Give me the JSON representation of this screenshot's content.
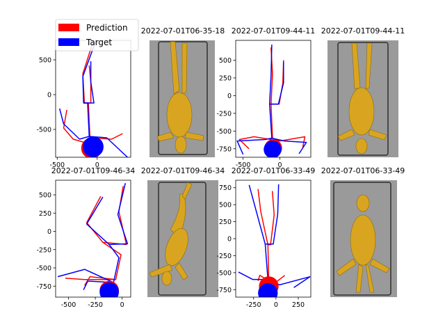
{
  "figure": {
    "colors": {
      "prediction": "#ff0000",
      "target": "#0000ff",
      "image_bg": "#9a9a9a",
      "animal": "#d9a520",
      "frame": "#303030"
    },
    "legend": {
      "prediction_label": "Prediction",
      "target_label": "Target"
    }
  },
  "chart_data": [
    {
      "type": "line",
      "title": "",
      "xlabel": "",
      "ylabel": "",
      "xlim": [
        -520,
        420
      ],
      "ylim": [
        -900,
        780
      ],
      "xticks": [
        -500,
        0
      ],
      "yticks": [
        500,
        0,
        -500
      ],
      "grid": false,
      "legend": "top-left",
      "series": [
        {
          "name": "Prediction",
          "segments": [
            [
              [
                -60,
                730
              ],
              [
                -180,
                300
              ],
              [
                -160,
                -120
              ],
              [
                -80,
                -120
              ],
              [
                -80,
                180
              ],
              [
                -100,
                420
              ]
            ],
            [
              [
                -160,
                -120
              ],
              [
                -110,
                -120
              ],
              [
                -90,
                -620
              ],
              [
                -120,
                -700
              ],
              [
                -300,
                -640
              ],
              [
                -420,
                -480
              ],
              [
                -380,
                -220
              ]
            ],
            [
              [
                -90,
                -620
              ],
              [
                180,
                -640
              ],
              [
                320,
                -560
              ]
            ]
          ],
          "marker": {
            "x": -70,
            "y": -770,
            "r": 130
          }
        },
        {
          "name": "Target",
          "segments": [
            [
              [
                -20,
                760
              ],
              [
                -180,
                260
              ],
              [
                -170,
                -120
              ],
              [
                -40,
                -120
              ],
              [
                -80,
                180
              ],
              [
                -80,
                480
              ]
            ],
            [
              [
                -170,
                -120
              ],
              [
                -120,
                -120
              ],
              [
                -100,
                -600
              ],
              [
                -220,
                -640
              ],
              [
                -420,
                -420
              ],
              [
                -470,
                -200
              ]
            ],
            [
              [
                -100,
                -600
              ],
              [
                120,
                -620
              ],
              [
                380,
                -900
              ]
            ]
          ],
          "marker": {
            "x": -50,
            "y": -750,
            "r": 130
          }
        }
      ]
    },
    {
      "type": "line",
      "title": "2022-07-01T09-44-11",
      "xlabel": "",
      "ylabel": "",
      "xlim": [
        -600,
        420
      ],
      "ylim": [
        -870,
        780
      ],
      "xticks": [
        -500,
        0
      ],
      "yticks": [
        500,
        250,
        0,
        -250,
        -500,
        -750
      ],
      "grid": false,
      "legend": "none",
      "series": [
        {
          "name": "Prediction",
          "segments": [
            [
              [
                -120,
                680
              ],
              [
                -100,
                300
              ],
              [
                -120,
                -120
              ],
              [
                -10,
                -120
              ],
              [
                40,
                180
              ],
              [
                50,
                500
              ]
            ],
            [
              [
                -120,
                -120
              ],
              [
                -100,
                -600
              ],
              [
                -120,
                -620
              ],
              [
                -350,
                -580
              ],
              [
                -550,
                -620
              ],
              [
                -420,
                -750
              ]
            ],
            [
              [
                -100,
                -600
              ],
              [
                0,
                -640
              ],
              [
                340,
                -580
              ],
              [
                310,
                -730
              ]
            ]
          ],
          "marker": {
            "x": -90,
            "y": -740,
            "r": 120
          }
        },
        {
          "name": "Target",
          "segments": [
            [
              [
                -110,
                720
              ],
              [
                -120,
                280
              ],
              [
                -140,
                -120
              ],
              [
                -20,
                -120
              ],
              [
                50,
                180
              ],
              [
                50,
                480
              ]
            ],
            [
              [
                -140,
                -120
              ],
              [
                -110,
                -600
              ],
              [
                -200,
                -620
              ],
              [
                -580,
                -640
              ],
              [
                -500,
                -830
              ]
            ],
            [
              [
                -110,
                -600
              ],
              [
                60,
                -640
              ],
              [
                360,
                -660
              ],
              [
                260,
                -820
              ]
            ]
          ],
          "marker": {
            "x": -100,
            "y": -760,
            "r": 120
          }
        }
      ]
    },
    {
      "type": "line",
      "title": "2022-07-01T09-46-34",
      "xlabel": "",
      "ylabel": "",
      "xlim": [
        -620,
        80
      ],
      "ylim": [
        -900,
        700
      ],
      "xticks": [
        -500,
        -250,
        0
      ],
      "yticks": [
        500,
        250,
        0,
        -250,
        -500,
        -750
      ],
      "grid": false,
      "legend": "none",
      "series": [
        {
          "name": "Prediction",
          "segments": [
            [
              [
                -200,
                480
              ],
              [
                -330,
                120
              ],
              [
                -180,
                -150
              ],
              [
                40,
                -180
              ],
              [
                -30,
                270
              ],
              [
                10,
                620
              ]
            ],
            [
              [
                -180,
                -150
              ],
              [
                -10,
                -320
              ],
              [
                -60,
                -660
              ],
              [
                -300,
                -620
              ],
              [
                -350,
                -740
              ]
            ],
            [
              [
                -60,
                -660
              ],
              [
                -350,
                -660
              ],
              [
                -530,
                -640
              ]
            ]
          ],
          "marker": {
            "x": -120,
            "y": -810,
            "r": 90
          }
        },
        {
          "name": "Target",
          "segments": [
            [
              [
                -180,
                470
              ],
              [
                -330,
                100
              ],
              [
                -120,
                -180
              ],
              [
                50,
                -170
              ],
              [
                -40,
                230
              ],
              [
                30,
                660
              ]
            ],
            [
              [
                -120,
                -180
              ],
              [
                -30,
                -360
              ],
              [
                -80,
                -700
              ],
              [
                -320,
                -680
              ],
              [
                -360,
                -800
              ]
            ],
            [
              [
                -80,
                -700
              ],
              [
                -350,
                -520
              ],
              [
                -600,
                -620
              ]
            ]
          ],
          "marker": {
            "x": -120,
            "y": -830,
            "r": 90
          }
        }
      ]
    },
    {
      "type": "line",
      "title": "2022-07-01T06-33-49",
      "xlabel": "",
      "ylabel": "",
      "xlim": [
        -450,
        390
      ],
      "ylim": [
        -860,
        860
      ],
      "xticks": [
        -250,
        0,
        250
      ],
      "yticks": [
        750,
        500,
        250,
        0,
        -250,
        -500,
        -750
      ],
      "grid": false,
      "legend": "none",
      "series": [
        {
          "name": "Prediction",
          "segments": [
            [
              [
                -200,
                730
              ],
              [
                -170,
                400
              ],
              [
                -90,
                -90
              ],
              [
                -60,
                -90
              ],
              [
                -20,
                350
              ],
              [
                -40,
                700
              ]
            ],
            [
              [
                -90,
                -90
              ],
              [
                -80,
                -620
              ],
              [
                -180,
                -540
              ],
              [
                -200,
                -620
              ]
            ],
            [
              [
                -80,
                -620
              ],
              [
                0,
                -640
              ],
              [
                100,
                -540
              ]
            ]
          ],
          "marker": {
            "x": -80,
            "y": -700,
            "r": 110
          }
        },
        {
          "name": "Target",
          "segments": [
            [
              [
                -300,
                790
              ],
              [
                -120,
                -80
              ],
              [
                -30,
                -80
              ],
              [
                20,
                360
              ],
              [
                30,
                800
              ]
            ],
            [
              [
                -120,
                -80
              ],
              [
                -90,
                -600
              ],
              [
                -260,
                -600
              ],
              [
                -420,
                -490
              ]
            ],
            [
              [
                -90,
                -600
              ],
              [
                40,
                -680
              ],
              [
                380,
                -560
              ],
              [
                200,
                -720
              ]
            ]
          ],
          "marker": {
            "x": -90,
            "y": -800,
            "r": 110
          }
        }
      ]
    }
  ],
  "photos": [
    {
      "title": "2022-07-01T06-35-18",
      "pose": "legs-up"
    },
    {
      "title": "2022-07-01T09-44-11",
      "pose": "legs-up"
    },
    {
      "title": "2022-07-01T09-46-34",
      "pose": "twisted"
    },
    {
      "title": "2022-07-01T06-33-49",
      "pose": "legs-down"
    }
  ]
}
